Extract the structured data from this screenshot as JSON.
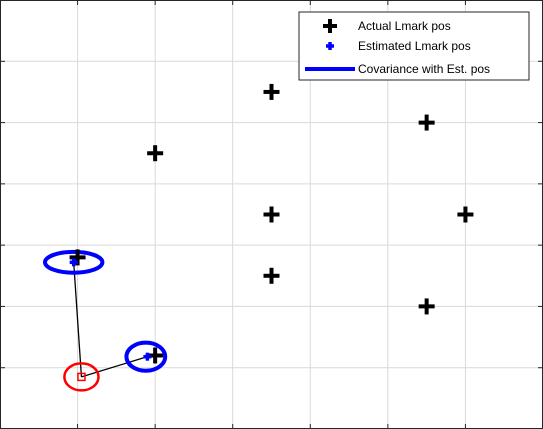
{
  "chart_data": {
    "type": "scatter",
    "title": "",
    "xlabel": "",
    "ylabel": "",
    "xlim": [
      -1,
      6
    ],
    "ylim": [
      0,
      7
    ],
    "grid": true,
    "legend_position": "top-right",
    "colors": {
      "actual": "#000000",
      "estimated": "#0000ff",
      "covariance": "#0000ff",
      "robot": "#ff0000",
      "grid": "#d9d9d9",
      "axes": "#262626"
    },
    "series": [
      {
        "name": "Actual Lmark pos",
        "marker": "plus",
        "points": [
          [
            0,
            2.8
          ],
          [
            1,
            4.5
          ],
          [
            2.5,
            5.5
          ],
          [
            4.5,
            5.0
          ],
          [
            2.5,
            3.5
          ],
          [
            5.0,
            3.5
          ],
          [
            2.5,
            2.5
          ],
          [
            4.5,
            2.0
          ],
          [
            1,
            1.2
          ]
        ]
      },
      {
        "name": "Estimated Lmark pos",
        "marker": "plus-small",
        "points": [
          [
            -0.05,
            2.72
          ],
          [
            0.9,
            1.18
          ]
        ]
      },
      {
        "name": "Covariance with Est. pos",
        "marker": "ellipse",
        "ellipses": [
          {
            "cx": -0.05,
            "cy": 2.72,
            "rx": 0.37,
            "ry": 0.17
          },
          {
            "cx": 0.88,
            "cy": 1.18,
            "rx": 0.25,
            "ry": 0.23
          }
        ]
      }
    ],
    "robot": {
      "x": 0.05,
      "y": 0.85,
      "radius": 0.22
    },
    "observation_lines": [
      {
        "from": [
          0.05,
          0.85
        ],
        "to": [
          -0.05,
          2.72
        ]
      },
      {
        "from": [
          0.05,
          0.85
        ],
        "to": [
          0.9,
          1.18
        ]
      }
    ],
    "legend": [
      {
        "label": "Actual Lmark pos",
        "marker": "plus"
      },
      {
        "label": "Estimated Lmark pos",
        "marker": "plus-small"
      },
      {
        "label": "Covariance with Est. pos",
        "marker": "line"
      }
    ]
  }
}
